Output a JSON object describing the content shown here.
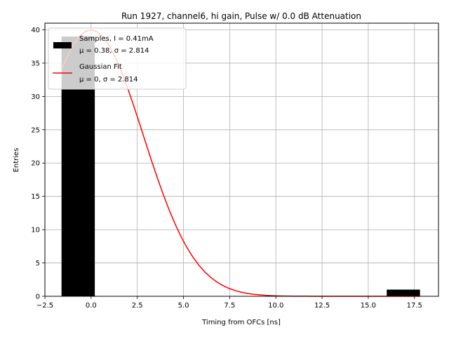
{
  "chart_data": {
    "type": "bar",
    "title": "Run 1927, channel6, hi gain, Pulse w/ 0.0 dB Attenuation",
    "xlabel": "Timing from OFCs [ns]",
    "ylabel": "Entries",
    "xlim": [
      -2.5,
      18.8
    ],
    "ylim": [
      0,
      41
    ],
    "grid": true,
    "legend_placement": "top-left",
    "x_ticks": [
      -2.5,
      0.0,
      2.5,
      5.0,
      7.5,
      10.0,
      12.5,
      15.0,
      17.5
    ],
    "x_tick_labels": [
      "−2.5",
      "0.0",
      "2.5",
      "5.0",
      "7.5",
      "10.0",
      "12.5",
      "15.0",
      "17.5"
    ],
    "y_ticks": [
      0,
      5,
      10,
      15,
      20,
      25,
      30,
      35,
      40
    ],
    "y_tick_labels": [
      "0",
      "5",
      "10",
      "15",
      "20",
      "25",
      "30",
      "35",
      "40"
    ],
    "histogram": {
      "legend_label_line1": "Samples, I = 0.41mA",
      "legend_label_line2": "μ = 0.38, σ = 2.814",
      "color": "#000000",
      "bins": [
        {
          "x0": -1.6,
          "x1": 0.2,
          "count": 39
        },
        {
          "x0": 16.0,
          "x1": 17.8,
          "count": 1
        }
      ]
    },
    "fit": {
      "legend_label_line1": "Gaussian Fit",
      "legend_label_line2": "μ = 0, σ = 2.814",
      "color": "#ff0000",
      "mu": 0,
      "sigma": 2.814,
      "amplitude": 40,
      "x_range": [
        -1.6,
        17.8
      ]
    }
  }
}
